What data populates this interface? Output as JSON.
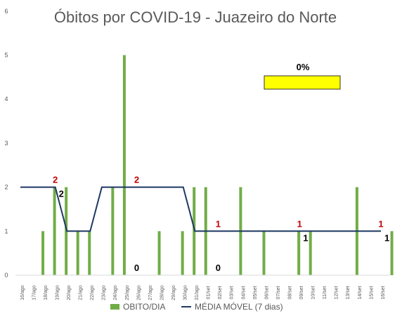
{
  "chart_data": {
    "type": "bar",
    "title": "Óbitos por COVID-19 - Juazeiro do Norte",
    "categories": [
      "16/ago",
      "17/ago",
      "18/ago",
      "19/ago",
      "20/ago",
      "21/ago",
      "22/ago",
      "23/ago",
      "24/ago",
      "25/ago",
      "26/ago",
      "27/ago",
      "28/ago",
      "29/ago",
      "30/ago",
      "31/ago",
      "01/set",
      "02/set",
      "03/set",
      "04/set",
      "05/set",
      "06/set",
      "07/set",
      "08/set",
      "09/set",
      "10/set",
      "11/set",
      "12/set",
      "13/set",
      "14/set",
      "15/set",
      "16/set"
    ],
    "series": [
      {
        "name": "OBITO/DIA",
        "type": "bar",
        "color": "#70ad47",
        "values": [
          0,
          1,
          2,
          2,
          1,
          1,
          0,
          2,
          5,
          0,
          0,
          1,
          0,
          1,
          2,
          2,
          0,
          0,
          2,
          0,
          1,
          0,
          0,
          1,
          1,
          0,
          0,
          0,
          2,
          0,
          0,
          1
        ]
      },
      {
        "name": "MÉDIA MÓVEL (7 dias)",
        "type": "line",
        "color": "#1f3864",
        "values": [
          2,
          2,
          2,
          2,
          1,
          1,
          1,
          2,
          2,
          2,
          2,
          2,
          2,
          2,
          2,
          1,
          1,
          1,
          1,
          1,
          1,
          1,
          1,
          1,
          1,
          1,
          1,
          1,
          1,
          1,
          1,
          1
        ]
      }
    ],
    "ylim": [
      0,
      6
    ],
    "yticks": [
      "0",
      "1",
      "2",
      "3",
      "4",
      "5",
      "6"
    ],
    "grid": false,
    "legend": "bottom",
    "annotations": [
      {
        "text": "2",
        "index": 3,
        "value": 2,
        "color": "#c00000",
        "pos": "above"
      },
      {
        "text": "2",
        "index": 3,
        "value": 2,
        "color": "#000000",
        "pos": "right"
      },
      {
        "text": "2",
        "index": 10,
        "value": 2,
        "color": "#c00000",
        "pos": "above"
      },
      {
        "text": "0",
        "index": 10,
        "value": 0,
        "color": "#000000",
        "pos": "above"
      },
      {
        "text": "1",
        "index": 17,
        "value": 1,
        "color": "#c00000",
        "pos": "above"
      },
      {
        "text": "0",
        "index": 17,
        "value": 0,
        "color": "#000000",
        "pos": "above"
      },
      {
        "text": "1",
        "index": 24,
        "value": 1,
        "color": "#c00000",
        "pos": "above"
      },
      {
        "text": "1",
        "index": 24,
        "value": 1,
        "color": "#000000",
        "pos": "right"
      },
      {
        "text": "1",
        "index": 31,
        "value": 1,
        "color": "#c00000",
        "pos": "above"
      },
      {
        "text": "1",
        "index": 31,
        "value": 1,
        "color": "#000000",
        "pos": "right"
      }
    ],
    "callout": {
      "text": "0%",
      "fill": "#ffff00"
    }
  }
}
